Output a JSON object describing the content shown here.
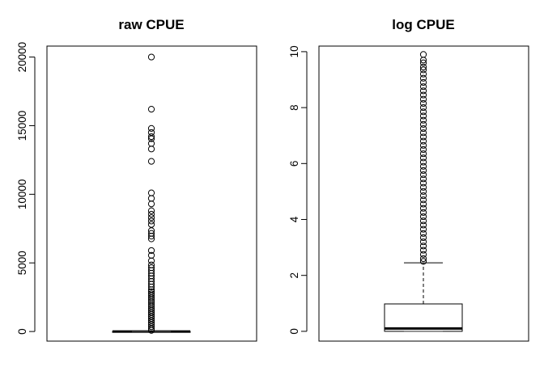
{
  "chart_data": [
    {
      "type": "boxplot",
      "title": "raw CPUE",
      "ylim": [
        -700,
        20800
      ],
      "yticks": [
        0,
        5000,
        10000,
        15000,
        20000
      ],
      "ytick_labels": [
        "0",
        "5000",
        "10000",
        "15000",
        "20000"
      ],
      "grid": false,
      "stats": {
        "min": 0,
        "q1": 0,
        "median": 1,
        "q3": 3,
        "whisker_high": 7
      },
      "outliers": [
        20000,
        16200,
        14800,
        14500,
        14200,
        14050,
        13700,
        13300,
        12400,
        10100,
        9700,
        9300,
        8800,
        8550,
        8300,
        8050,
        7800,
        7350,
        7150,
        6950,
        6750,
        5900,
        5550,
        5150,
        4850,
        4650,
        4450,
        4250,
        4050,
        3850,
        3650,
        3450,
        3250,
        3050,
        2900,
        2750,
        2600,
        2450,
        2300,
        2150,
        2000,
        1850,
        1700,
        1550,
        1400,
        1250,
        1100,
        950,
        800,
        650,
        500,
        350,
        200,
        80
      ]
    },
    {
      "type": "boxplot",
      "title": "log CPUE",
      "ylim": [
        -0.35,
        10.2
      ],
      "yticks": [
        0,
        2,
        4,
        6,
        8,
        10
      ],
      "ytick_labels": [
        "0",
        "2",
        "4",
        "6",
        "8",
        "10"
      ],
      "grid": false,
      "stats": {
        "min": 0,
        "q1": 0,
        "median": 0.1,
        "q3": 0.98,
        "whisker_high": 2.45
      },
      "outliers": [
        9.9,
        9.7,
        9.6,
        9.45,
        9.35,
        9.2,
        9.05,
        8.9,
        8.75,
        8.6,
        8.45,
        8.3,
        8.15,
        8.0,
        7.85,
        7.7,
        7.55,
        7.4,
        7.25,
        7.1,
        6.95,
        6.8,
        6.65,
        6.5,
        6.35,
        6.2,
        6.05,
        5.9,
        5.75,
        5.6,
        5.45,
        5.3,
        5.15,
        5.0,
        4.85,
        4.7,
        4.55,
        4.4,
        4.25,
        4.1,
        3.95,
        3.8,
        3.65,
        3.5,
        3.35,
        3.2,
        3.05,
        2.9,
        2.75,
        2.6,
        2.5
      ]
    }
  ]
}
